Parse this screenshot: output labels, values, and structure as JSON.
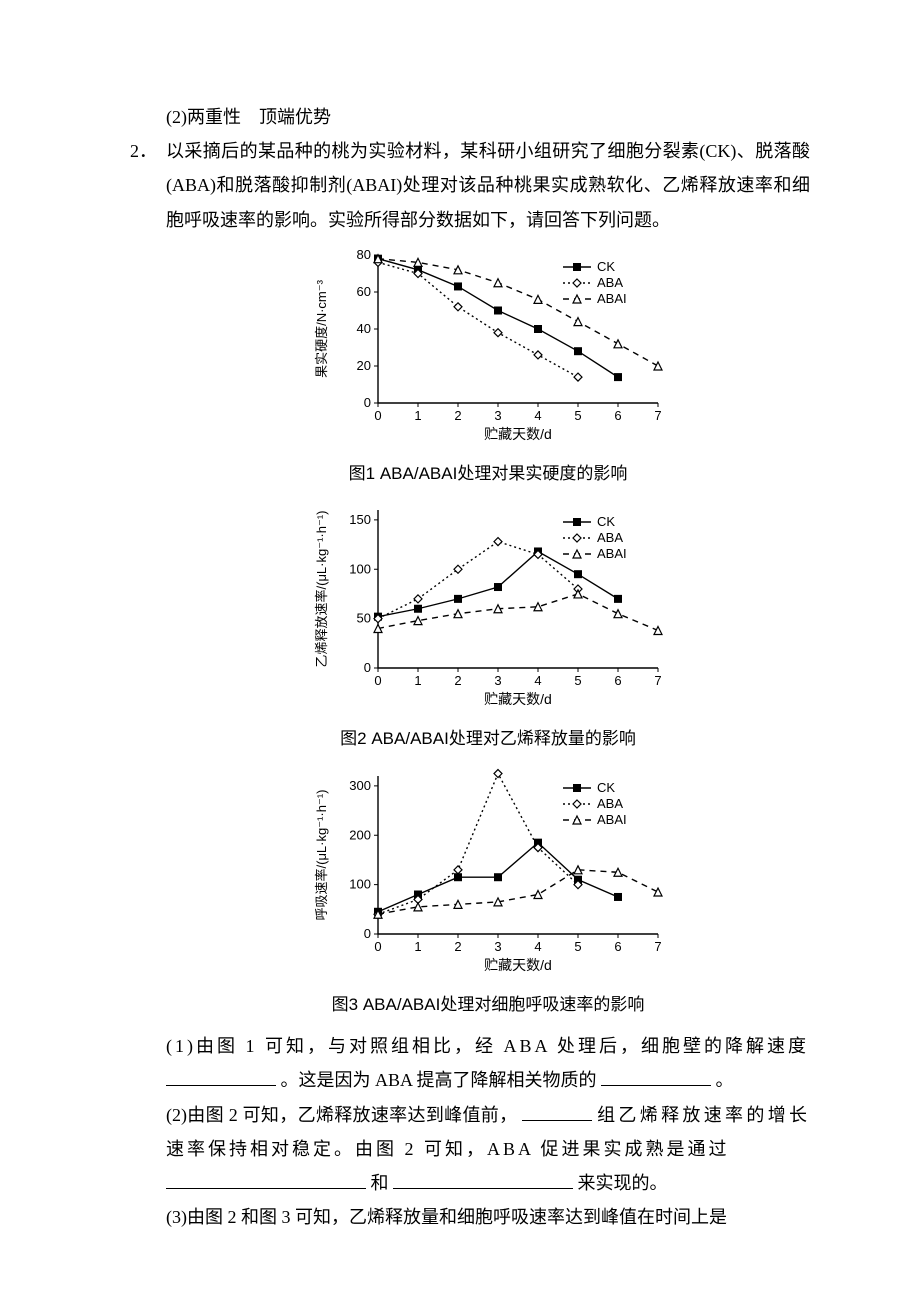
{
  "text": {
    "answer2": "(2)两重性　顶端优势",
    "q2num": "2．",
    "q2stem": "以采摘后的某品种的桃为实验材料，某科研小组研究了细胞分裂素(CK)、脱落酸(ABA)和脱落酸抑制剂(ABAI)处理对该品种桃果实成熟软化、乙烯释放速率和细胞呼吸速率的影响。实验所得部分数据如下，请回答下列问题。",
    "q2_1a": "(1)由图 1 可知，与对照组相比，经 ABA 处理后，细胞壁的降解速度",
    "q2_1b": "。这是因为 ABA 提高了降解相关物质的",
    "q2_1c": "。",
    "q2_2a": "(2)由图 2 可知，乙烯释放速率达到峰值前，",
    "q2_2b": "组乙烯释放速率的增长速率保持相对稳定。由图 2 可知，ABA 促进果实成熟是通过",
    "q2_2c": "和",
    "q2_2d": "来实现的。",
    "q2_3a": "(3)由图 2 和图 3 可知，乙烯释放量和细胞呼吸速率达到峰值在时间上是"
  },
  "charts": {
    "legend_labels": [
      "CK",
      "ABA",
      "ABAI"
    ],
    "colors": {
      "line": "#000000",
      "marker_fill_ck": "#000000",
      "marker_fill_open": "#ffffff",
      "axis": "#000000",
      "bg": "#ffffff"
    },
    "fig1": {
      "caption": "图1  ABA/ABAI处理对果实硬度的影响",
      "xlabel": "贮藏天数/d",
      "ylabel": "果实硬度/N·cm⁻³",
      "xlim": [
        0,
        7
      ],
      "ylim": [
        0,
        80
      ],
      "xticks": [
        0,
        1,
        2,
        3,
        4,
        5,
        6,
        7
      ],
      "yticks": [
        0,
        20,
        40,
        60,
        80
      ],
      "series": {
        "CK": {
          "x": [
            0,
            1,
            2,
            3,
            4,
            5,
            6
          ],
          "y": [
            78,
            72,
            63,
            50,
            40,
            28,
            14
          ],
          "marker": "square-filled",
          "dash": "solid"
        },
        "ABA": {
          "x": [
            0,
            1,
            2,
            3,
            4,
            5
          ],
          "y": [
            76,
            70,
            52,
            38,
            26,
            14
          ],
          "marker": "diamond-open",
          "dash": "dotted"
        },
        "ABAI": {
          "x": [
            0,
            1,
            2,
            3,
            4,
            5,
            6,
            7
          ],
          "y": [
            78,
            76,
            72,
            65,
            56,
            44,
            32,
            20
          ],
          "marker": "triangle-open",
          "dash": "dashed"
        }
      }
    },
    "fig2": {
      "caption": "图2  ABA/ABAI处理对乙烯释放量的影响",
      "xlabel": "贮藏天数/d",
      "ylabel": "乙烯释放速率/(μL·kg⁻¹·h⁻¹)",
      "xlim": [
        0,
        7
      ],
      "ylim": [
        0,
        160
      ],
      "xticks": [
        0,
        1,
        2,
        3,
        4,
        5,
        6,
        7
      ],
      "yticks": [
        0,
        50,
        100,
        150
      ],
      "series": {
        "CK": {
          "x": [
            0,
            1,
            2,
            3,
            4,
            5,
            6
          ],
          "y": [
            52,
            60,
            70,
            82,
            118,
            95,
            70
          ],
          "marker": "square-filled",
          "dash": "solid"
        },
        "ABA": {
          "x": [
            0,
            1,
            2,
            3,
            4,
            5
          ],
          "y": [
            50,
            70,
            100,
            128,
            115,
            80
          ],
          "marker": "diamond-open",
          "dash": "dotted"
        },
        "ABAI": {
          "x": [
            0,
            1,
            2,
            3,
            4,
            5,
            6,
            7
          ],
          "y": [
            40,
            48,
            55,
            60,
            62,
            75,
            55,
            38
          ],
          "marker": "triangle-open",
          "dash": "dashed"
        }
      }
    },
    "fig3": {
      "caption": "图3  ABA/ABAI处理对细胞呼吸速率的影响",
      "xlabel": "贮藏天数/d",
      "ylabel": "呼吸速率/(μL·kg⁻¹·h⁻¹)",
      "xlim": [
        0,
        7
      ],
      "ylim": [
        0,
        320
      ],
      "xticks": [
        0,
        1,
        2,
        3,
        4,
        5,
        6,
        7
      ],
      "yticks": [
        0,
        100,
        200,
        300
      ],
      "series": {
        "CK": {
          "x": [
            0,
            1,
            2,
            3,
            4,
            5,
            6
          ],
          "y": [
            45,
            80,
            115,
            115,
            185,
            110,
            75
          ],
          "marker": "square-filled",
          "dash": "solid"
        },
        "ABA": {
          "x": [
            0,
            1,
            2,
            3,
            4,
            5
          ],
          "y": [
            40,
            70,
            130,
            325,
            175,
            100
          ],
          "marker": "diamond-open",
          "dash": "dotted"
        },
        "ABAI": {
          "x": [
            0,
            1,
            2,
            3,
            4,
            5,
            6,
            7
          ],
          "y": [
            40,
            55,
            60,
            65,
            80,
            130,
            125,
            85
          ],
          "marker": "triangle-open",
          "dash": "dashed"
        }
      }
    }
  }
}
